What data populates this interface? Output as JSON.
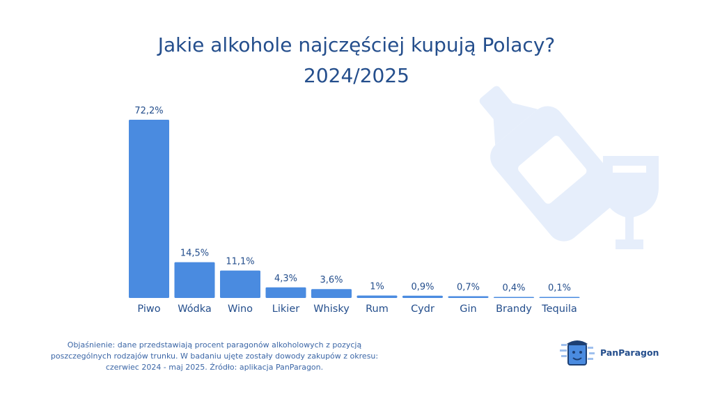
{
  "title": {
    "line1": "Jakie alkohole najczęściej kupują Polacy?",
    "line2": "2024/2025"
  },
  "chart_data": {
    "type": "bar",
    "categories": [
      "Piwo",
      "Wódka",
      "Wino",
      "Likier",
      "Whisky",
      "Rum",
      "Cydr",
      "Gin",
      "Brandy",
      "Tequila"
    ],
    "values": [
      72.2,
      14.5,
      11.1,
      4.3,
      3.6,
      1,
      0.9,
      0.7,
      0.4,
      0.1
    ],
    "data_labels": [
      "72,2%",
      "14,5%",
      "11,1%",
      "4,3%",
      "3,6%",
      "1%",
      "0,9%",
      "0,7%",
      "0,4%",
      "0,1%"
    ],
    "ylim": [
      0,
      72.2
    ],
    "grid": false,
    "bar_color": "#4a8be0"
  },
  "note": "Objaśnienie: dane przedstawiają procent paragonów alkoholowych z pozycją poszczególnych rodzajów trunku. W badaniu ujęte zostały dowody zakupów z okresu: czerwiec 2024 - maj 2025. Źródło: aplikacja PanParagon.",
  "brand": {
    "name": "PanParagon",
    "icon": "panparagon-mascot-icon"
  },
  "decor": {
    "icons": [
      "bottle-icon",
      "wine-glass-icon"
    ],
    "color": "#e6eefb"
  },
  "colors": {
    "title": "#244e8c",
    "text": "#3b66a6",
    "bar": "#4a8be0"
  }
}
